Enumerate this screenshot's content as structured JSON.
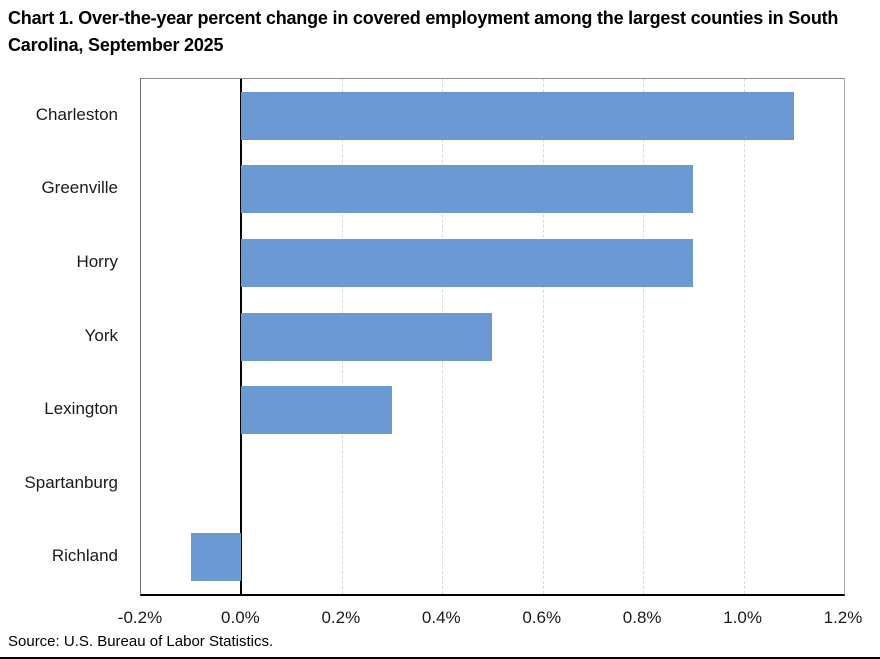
{
  "title": "Chart 1. Over-the-year percent change in covered employment among the largest counties in South Carolina, September 2025",
  "source": "Source: U.S. Bureau of Labor Statistics.",
  "chart_data": {
    "type": "bar",
    "orientation": "horizontal",
    "title": "Chart 1. Over-the-year percent change in covered employment among the largest counties in South Carolina, September 2025",
    "categories": [
      "Charleston",
      "Greenville",
      "Horry",
      "York",
      "Lexington",
      "Spartanburg",
      "Richland"
    ],
    "values": [
      1.1,
      0.9,
      0.9,
      0.5,
      0.3,
      0.0,
      -0.1
    ],
    "unit": "%",
    "xlim": [
      -0.2,
      1.2
    ],
    "xticks": [
      -0.2,
      0.0,
      0.2,
      0.4,
      0.6,
      0.8,
      1.0,
      1.2
    ],
    "xtick_labels": [
      "-0.2%",
      "0.0%",
      "0.2%",
      "0.4%",
      "0.6%",
      "0.8%",
      "1.0%",
      "1.2%"
    ],
    "bar_color": "#6B99D4",
    "gridline_color": "#d9d9d9",
    "zero_line_color": "#000000",
    "grid": true,
    "legend": "none"
  }
}
